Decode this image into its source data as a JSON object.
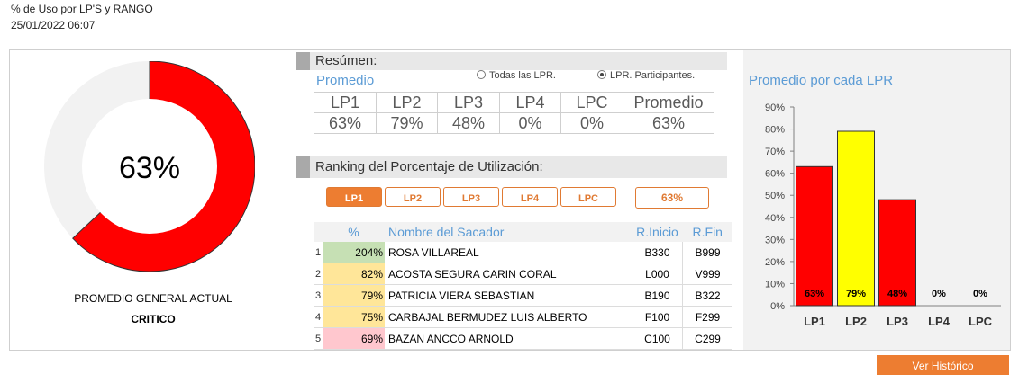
{
  "header": {
    "title": "% de Uso por LP'S y RANGO",
    "date": "25/01/2022 06:07"
  },
  "donut": {
    "value": 63,
    "label": "63%",
    "caption": "PROMEDIO GENERAL ACTUAL",
    "status": "CRITICO",
    "fill_color": "#ff0000",
    "track_color": "#f2f2f2"
  },
  "resumen": {
    "title": "Resúmen:",
    "subtitle": "Promedio",
    "radio_todas": "Todas las LPR.",
    "radio_participantes": "LPR. Participantes.",
    "columns": [
      "LP1",
      "LP2",
      "LP3",
      "LP4",
      "LPC",
      "Promedio"
    ],
    "values": [
      "63%",
      "79%",
      "48%",
      "0%",
      "0%",
      "63%"
    ]
  },
  "ranking": {
    "title": "Ranking del Porcentaje de Utilización:",
    "buttons": [
      "LP1",
      "LP2",
      "LP3",
      "LP4",
      "LPC"
    ],
    "active": "LP1",
    "value_badge": "63%",
    "headers": {
      "pct": "%",
      "name": "Nombre del Sacador",
      "inicio": "R.Inicio",
      "fin": "R.Fin"
    },
    "rows": [
      {
        "n": "1",
        "pct": "204%",
        "name": "ROSA VILLAREAL",
        "inicio": "B330",
        "fin": "B999",
        "color": "#c6e0b4"
      },
      {
        "n": "2",
        "pct": "82%",
        "name": "ACOSTA SEGURA CARIN CORAL",
        "inicio": "L000",
        "fin": "V999",
        "color": "#ffe699"
      },
      {
        "n": "3",
        "pct": "79%",
        "name": "PATRICIA VIERA SEBASTIAN",
        "inicio": "B190",
        "fin": "B322",
        "color": "#ffe699"
      },
      {
        "n": "4",
        "pct": "75%",
        "name": "CARBAJAL BERMUDEZ LUIS ALBERTO",
        "inicio": "F100",
        "fin": "F299",
        "color": "#ffe699"
      },
      {
        "n": "5",
        "pct": "69%",
        "name": "BAZAN ANCCO ARNOLD",
        "inicio": "C100",
        "fin": "C299",
        "color": "#ffc7ce"
      }
    ]
  },
  "chart_data": {
    "type": "bar",
    "title": "Promedio por cada LPR",
    "categories": [
      "LP1",
      "LP2",
      "LP3",
      "LP4",
      "LPC"
    ],
    "values": [
      63,
      79,
      48,
      0,
      0
    ],
    "data_labels": [
      "63%",
      "79%",
      "48%",
      "0%",
      "0%"
    ],
    "colors": [
      "#ff0000",
      "#ffff00",
      "#ff0000",
      "#ff0000",
      "#ff0000"
    ],
    "ylim": [
      0,
      90
    ],
    "yticks": [
      "0%",
      "10%",
      "20%",
      "30%",
      "40%",
      "50%",
      "60%",
      "70%",
      "80%",
      "90%"
    ],
    "grid": false,
    "legend": "none"
  },
  "footer": {
    "button": "Ver Histórico"
  }
}
